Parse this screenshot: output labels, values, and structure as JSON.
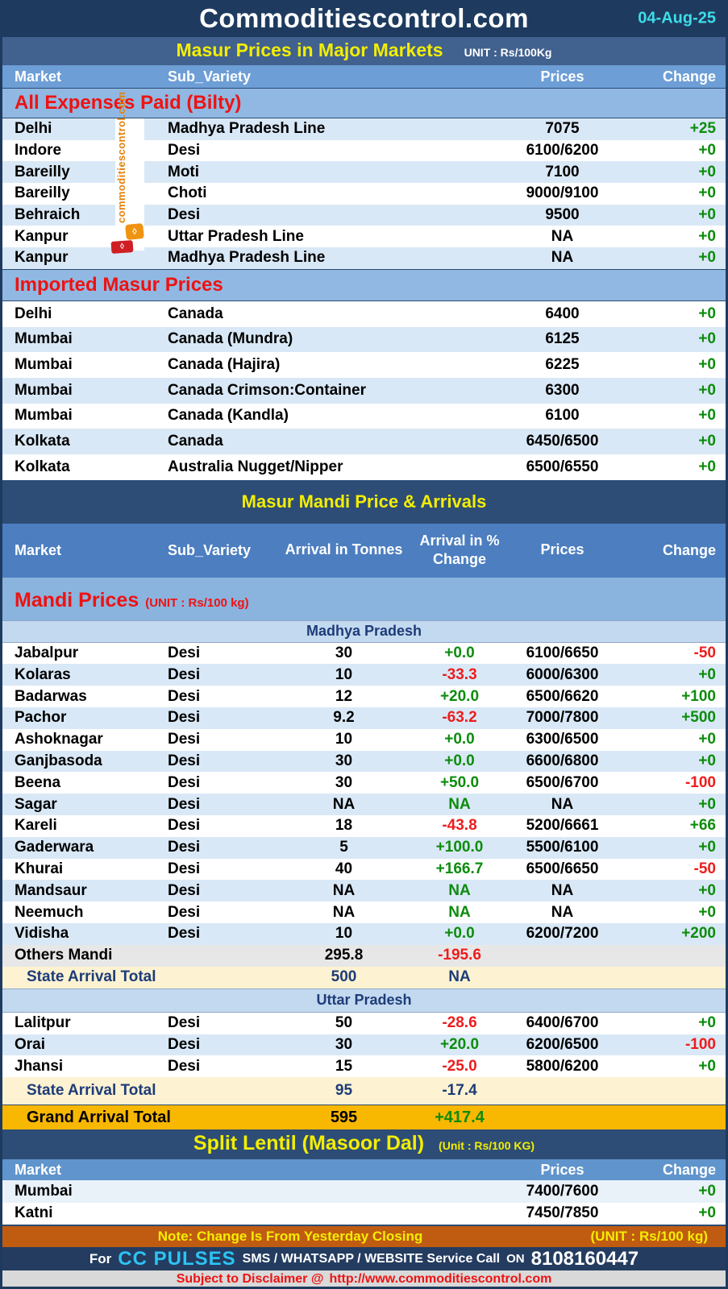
{
  "page": {
    "title": "Commoditiescontrol.com",
    "date": "04-Aug-25"
  },
  "major": {
    "title": "Masur Prices in Major Markets",
    "unit": "UNIT : Rs/100Kg",
    "columns": {
      "market": "Market",
      "variety": "Sub_Variety",
      "prices": "Prices",
      "change": "Change"
    },
    "bilty": {
      "title": "All Expenses Paid (Bilty)",
      "rows": [
        {
          "market": "Delhi",
          "variety": "Madhya Pradesh Line",
          "price": "7075",
          "change": "+25",
          "change_color": "pos"
        },
        {
          "market": "Indore",
          "variety": "Desi",
          "price": "6100/6200",
          "change": "+0",
          "change_color": "pos"
        },
        {
          "market": "Bareilly",
          "variety": "Moti",
          "price": "7100",
          "change": "+0",
          "change_color": "pos"
        },
        {
          "market": "Bareilly",
          "variety": "Choti",
          "price": "9000/9100",
          "change": "+0",
          "change_color": "pos"
        },
        {
          "market": "Behraich",
          "variety": "Desi",
          "price": "9500",
          "change": "+0",
          "change_color": "pos"
        },
        {
          "market": "Kanpur",
          "variety": "Uttar Pradesh Line",
          "price": "NA",
          "change": "+0",
          "change_color": "pos"
        },
        {
          "market": "Kanpur",
          "variety": "Madhya Pradesh Line",
          "price": "NA",
          "change": "+0",
          "change_color": "pos"
        }
      ]
    },
    "imported": {
      "title": "Imported Masur Prices",
      "rows": [
        {
          "market": "Delhi",
          "variety": "Canada",
          "price": "6400",
          "change": "+0",
          "change_color": "pos"
        },
        {
          "market": "Mumbai",
          "variety": "Canada (Mundra)",
          "price": "6125",
          "change": "+0",
          "change_color": "pos"
        },
        {
          "market": "Mumbai",
          "variety": "Canada (Hajira)",
          "price": "6225",
          "change": "+0",
          "change_color": "pos"
        },
        {
          "market": "Mumbai",
          "variety": "Canada Crimson:Container",
          "price": "6300",
          "change": "+0",
          "change_color": "pos"
        },
        {
          "market": "Mumbai",
          "variety": "Canada (Kandla)",
          "price": "6100",
          "change": "+0",
          "change_color": "pos"
        },
        {
          "market": "Kolkata",
          "variety": "Canada",
          "price": "6450/6500",
          "change": "+0",
          "change_color": "pos"
        },
        {
          "market": "Kolkata",
          "variety": "Australia Nugget/Nipper",
          "price": "6500/6550",
          "change": "+0",
          "change_color": "pos"
        }
      ]
    }
  },
  "mandi": {
    "title": "Masur Mandi Price & Arrivals",
    "columns": {
      "market": "Market",
      "variety": "Sub_Variety",
      "arrival": "Arrival in Tonnes",
      "arrival_pct": "Arrival in % Change",
      "prices": "Prices",
      "change": "Change"
    },
    "section_title": "Mandi Prices",
    "section_unit": "(UNIT : Rs/100 kg)",
    "mp": {
      "name": "Madhya Pradesh",
      "rows": [
        {
          "market": "Jabalpur",
          "variety": "Desi",
          "arrival": "30",
          "pct": "+0.0",
          "pct_color": "pos",
          "price": "6100/6650",
          "change": "-50",
          "change_color": "neg"
        },
        {
          "market": "Kolaras",
          "variety": "Desi",
          "arrival": "10",
          "pct": "-33.3",
          "pct_color": "neg",
          "price": "6000/6300",
          "change": "+0",
          "change_color": "pos"
        },
        {
          "market": "Badarwas",
          "variety": "Desi",
          "arrival": "12",
          "pct": "+20.0",
          "pct_color": "pos",
          "price": "6500/6620",
          "change": "+100",
          "change_color": "pos"
        },
        {
          "market": "Pachor",
          "variety": "Desi",
          "arrival": "9.2",
          "pct": "-63.2",
          "pct_color": "neg",
          "price": "7000/7800",
          "change": "+500",
          "change_color": "pos"
        },
        {
          "market": "Ashoknagar",
          "variety": "Desi",
          "arrival": "10",
          "pct": "+0.0",
          "pct_color": "pos",
          "price": "6300/6500",
          "change": "+0",
          "change_color": "pos"
        },
        {
          "market": "Ganjbasoda",
          "variety": "Desi",
          "arrival": "30",
          "pct": "+0.0",
          "pct_color": "pos",
          "price": "6600/6800",
          "change": "+0",
          "change_color": "pos"
        },
        {
          "market": "Beena",
          "variety": "Desi",
          "arrival": "30",
          "pct": "+50.0",
          "pct_color": "pos",
          "price": "6500/6700",
          "change": "-100",
          "change_color": "neg"
        },
        {
          "market": "Sagar",
          "variety": "Desi",
          "arrival": "NA",
          "pct": "NA",
          "pct_color": "pos",
          "price": "NA",
          "change": "+0",
          "change_color": "pos"
        },
        {
          "market": "Kareli",
          "variety": "Desi",
          "arrival": "18",
          "pct": "-43.8",
          "pct_color": "neg",
          "price": "5200/6661",
          "change": "+66",
          "change_color": "pos"
        },
        {
          "market": "Gaderwara",
          "variety": "Desi",
          "arrival": "5",
          "pct": "+100.0",
          "pct_color": "pos",
          "price": "5500/6100",
          "change": "+0",
          "change_color": "pos"
        },
        {
          "market": "Khurai",
          "variety": "Desi",
          "arrival": "40",
          "pct": "+166.7",
          "pct_color": "pos",
          "price": "6500/6650",
          "change": "-50",
          "change_color": "neg"
        },
        {
          "market": "Mandsaur",
          "variety": "Desi",
          "arrival": "NA",
          "pct": "NA",
          "pct_color": "pos",
          "price": "NA",
          "change": "+0",
          "change_color": "pos"
        },
        {
          "market": "Neemuch",
          "variety": "Desi",
          "arrival": "NA",
          "pct": "NA",
          "pct_color": "pos",
          "price": "NA",
          "change": "+0",
          "change_color": "pos"
        },
        {
          "market": "Vidisha",
          "variety": "Desi",
          "arrival": "10",
          "pct": "+0.0",
          "pct_color": "pos",
          "price": "6200/7200",
          "change": "+200",
          "change_color": "pos"
        }
      ],
      "others": {
        "label": "Others Mandi",
        "arrival": "295.8",
        "pct": "-195.6",
        "pct_color": "neg"
      },
      "total": {
        "label": "State Arrival Total",
        "arrival": "500",
        "pct": "NA",
        "pct_color": "pos"
      }
    },
    "up": {
      "name": "Uttar Pradesh",
      "rows": [
        {
          "market": "Lalitpur",
          "variety": "Desi",
          "arrival": "50",
          "pct": "-28.6",
          "pct_color": "neg",
          "price": "6400/6700",
          "change": "+0",
          "change_color": "pos"
        },
        {
          "market": "Orai",
          "variety": "Desi",
          "arrival": "30",
          "pct": "+20.0",
          "pct_color": "pos",
          "price": "6200/6500",
          "change": "-100",
          "change_color": "neg"
        },
        {
          "market": "Jhansi",
          "variety": "Desi",
          "arrival": "15",
          "pct": "-25.0",
          "pct_color": "neg",
          "price": "5800/6200",
          "change": "+0",
          "change_color": "pos"
        }
      ],
      "total": {
        "label": "State Arrival Total",
        "arrival": "95",
        "pct": "-17.4",
        "pct_color": "neg"
      }
    },
    "grand": {
      "label": "Grand Arrival Total",
      "arrival": "595",
      "pct": "+417.4",
      "pct_color": "pos"
    }
  },
  "split": {
    "title": "Split Lentil (Masoor Dal)",
    "unit": "(Unit : Rs/100 KG)",
    "columns": {
      "market": "Market",
      "prices": "Prices",
      "change": "Change"
    },
    "rows": [
      {
        "market": "Mumbai",
        "price": "7400/7600",
        "change": "+0",
        "change_color": "pos"
      },
      {
        "market": "Katni",
        "price": "7450/7850",
        "change": "+0",
        "change_color": "pos"
      }
    ]
  },
  "note": {
    "text": "Note: Change Is From Yesterday Closing",
    "unit": "(UNIT : Rs/100 kg)"
  },
  "cc": {
    "for": "For",
    "brand": "CC PULSES",
    "services": "SMS / WHATSAPP / WEBSITE Service Call",
    "on": "ON",
    "phone": "8108160447"
  },
  "footer": {
    "label": "Subject to Disclaimer @",
    "url": "http://www.commoditiescontrol.com"
  },
  "watermark": {
    "text": "commoditiescontrol.com"
  },
  "colors": {
    "header_navy": "#1e3b5f",
    "banner_blue": "#41618f",
    "accent_yellow": "#f3ee00",
    "date_cyan": "#3fdce8",
    "positive_green": "#0c8c0c",
    "negative_red": "#ee1c1c",
    "section_red": "#ee1212",
    "row_blue": "#d9e8f6",
    "gold": "#f8b701",
    "cream": "#fdf2d2",
    "note_orange": "#c05c12",
    "cc_cyan": "#2cc4f4"
  }
}
